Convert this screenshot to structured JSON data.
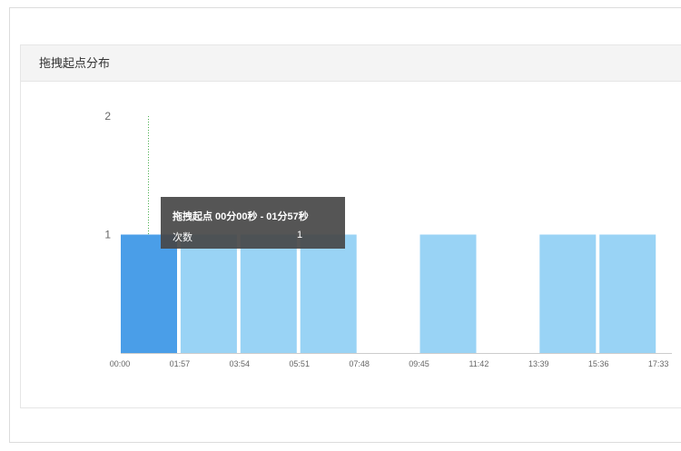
{
  "panel": {
    "title": "拖拽起点分布"
  },
  "tooltip": {
    "title": "拖拽起点 00分00秒 - 01分57秒",
    "label": "次数",
    "value": "1"
  },
  "colors": {
    "highlight_bar": "#4a9ee8",
    "bar": "#99d3f5",
    "axis": "#cccccc",
    "guide": "#4caf50"
  },
  "chart_data": {
    "type": "bar",
    "xlabel": "",
    "ylabel": "",
    "ylim": [
      0,
      2
    ],
    "y_ticks": [
      "1",
      "2"
    ],
    "x_ticks": [
      "00:00",
      "01:57",
      "03:54",
      "05:51",
      "07:48",
      "09:45",
      "11:42",
      "13:39",
      "15:36",
      "17:33"
    ],
    "categories": [
      "00:00-01:57",
      "01:57-03:54",
      "03:54-05:51",
      "05:51-07:48",
      "07:48-09:45",
      "09:45-11:42",
      "11:42-13:39",
      "13:39-15:36",
      "15:36-17:33"
    ],
    "values": [
      1,
      1,
      1,
      1,
      0,
      1,
      0,
      1,
      1
    ],
    "highlighted_index": 0,
    "grid": false
  }
}
